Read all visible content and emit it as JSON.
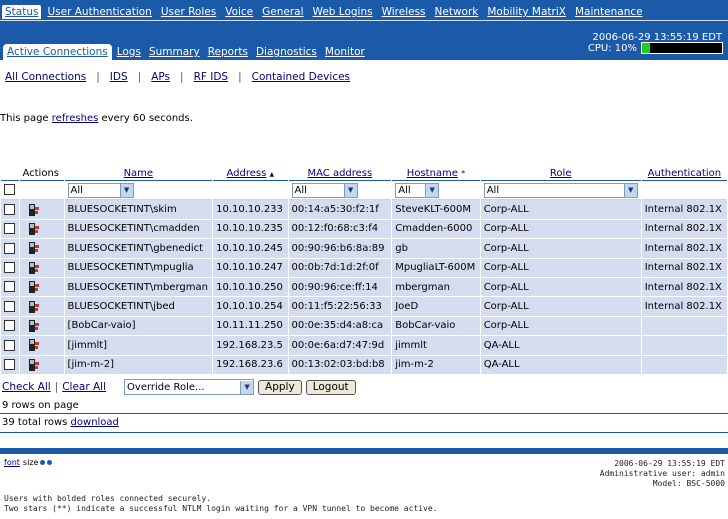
{
  "main_menu": {
    "items": [
      "Status",
      "User Authentication",
      "User Roles",
      "Voice",
      "General",
      "Web Logins",
      "Wireless",
      "Network",
      "Mobility MatriX",
      "Maintenance"
    ],
    "active": "Status"
  },
  "sub_menu": {
    "items": [
      "Active Connections",
      "Logs",
      "Summary",
      "Reports",
      "Diagnostics",
      "Monitor"
    ],
    "active": "Active Connections"
  },
  "header": {
    "datetime": "2006-06-29 13:55:19 EDT",
    "cpu_label": "CPU: 10%",
    "cpu_percent": 10,
    "cpu_color": "#22cc22"
  },
  "third_nav": {
    "items": [
      "All Connections",
      "IDS",
      "APs",
      "RF IDS",
      "Contained Devices"
    ],
    "separator": "|"
  },
  "refresh": {
    "prefix": "This page",
    "link": "refreshes",
    "suffix": "every 60 seconds."
  },
  "table": {
    "columns": {
      "actions": "Actions",
      "name": "Name",
      "address": "Address",
      "address_sort": "▲",
      "mac": "MAC address",
      "hostname": "Hostname",
      "hostname_sort": "*",
      "role": "Role",
      "authentication": "Authentication"
    },
    "filters": {
      "name": "All",
      "mac": "All",
      "hostname": "All",
      "role": "All"
    },
    "rows": [
      {
        "name": "BLUESOCKETINT\\skim",
        "address": "10.10.10.233",
        "mac": "00:14:a5:30:f2:1f",
        "hostname": "SteveKLT-600M",
        "role": "Corp-ALL",
        "auth": "Internal 802.1X"
      },
      {
        "name": "BLUESOCKETINT\\cmadden",
        "address": "10.10.10.235",
        "mac": "00:12:f0:68:c3:f4",
        "hostname": "Cmadden-6000",
        "role": "Corp-ALL",
        "auth": "Internal 802.1X"
      },
      {
        "name": "BLUESOCKETINT\\gbenedict",
        "address": "10.10.10.245",
        "mac": "00:90:96:b6:8a:89",
        "hostname": "gb",
        "role": "Corp-ALL",
        "auth": "Internal 802.1X"
      },
      {
        "name": "BLUESOCKETINT\\mpuglia",
        "address": "10.10.10.247",
        "mac": "00:0b:7d:1d:2f:0f",
        "hostname": "MpugliaLT-600M",
        "role": "Corp-ALL",
        "auth": "Internal 802.1X"
      },
      {
        "name": "BLUESOCKETINT\\mbergman",
        "address": "10.10.10.250",
        "mac": "00:90:96:ce:ff:14",
        "hostname": "mbergman",
        "role": "Corp-ALL",
        "auth": "Internal 802.1X"
      },
      {
        "name": "BLUESOCKETINT\\jbed",
        "address": "10.10.10.254",
        "mac": "00:11:f5:22:56:33",
        "hostname": "JoeD",
        "role": "Corp-ALL",
        "auth": "Internal 802.1X"
      },
      {
        "name": "[BobCar-vaio]",
        "address": "10.11.11.250",
        "mac": "00:0e:35:d4:a8:ca",
        "hostname": "BobCar-vaio",
        "role": "Corp-ALL",
        "auth": ""
      },
      {
        "name": "[jimmlt]",
        "address": "192.168.23.5",
        "mac": "00:0e:6a:d7:47:9d",
        "hostname": "jimmlt",
        "role": "QA-ALL",
        "auth": ""
      },
      {
        "name": "[jim-m-2]",
        "address": "192.168.23.6",
        "mac": "00:13:02:03:bd:b8",
        "hostname": "jim-m-2",
        "role": "QA-ALL",
        "auth": ""
      }
    ]
  },
  "bottom": {
    "check_all": "Check All",
    "clear_all": "Clear All",
    "override_role": "Override Role...",
    "apply": "Apply",
    "logout": "Logout",
    "rows_on_page": "9 rows on page",
    "total_rows": "39 total rows",
    "download": "download"
  },
  "footer": {
    "font_link": "font",
    "font_size": "size",
    "datetime": "2006-06-29 13:55:19 EDT",
    "admin_user": "Administrative user: admin",
    "model": "Model: BSC-5000",
    "note1": "Users with bolded roles connected securely.",
    "note2": "Two stars (**) indicate a successful NTLM login waiting for a VPN tunnel to become active."
  },
  "colors": {
    "header_bg": "#1a5aa8",
    "row_bg": "#d4ddf0",
    "link": "#000080"
  }
}
